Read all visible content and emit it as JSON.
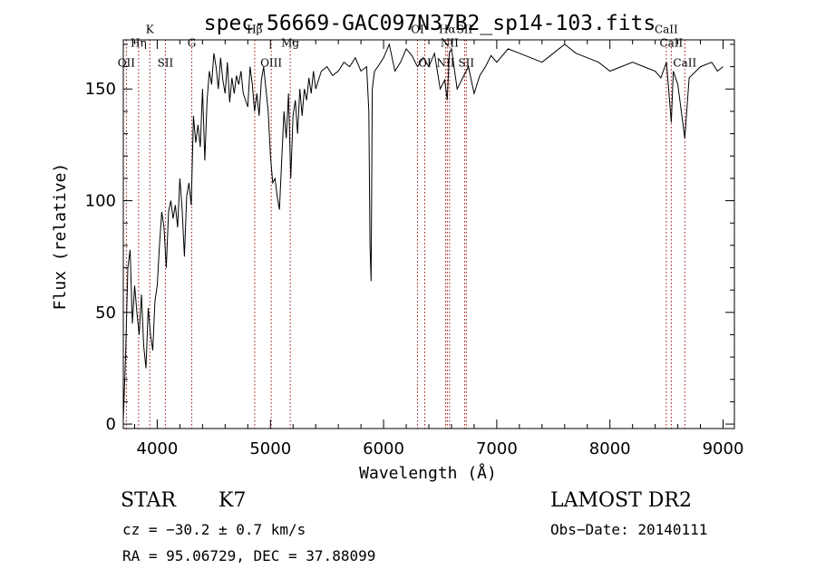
{
  "chart_data": {
    "type": "line",
    "title": "spec-56669-GAC097N37B2_sp14-103.fits",
    "xlabel": "Wavelength (Å)",
    "ylabel": "Flux (relative)",
    "xlim": [
      3700,
      9100
    ],
    "ylim": [
      -2,
      172
    ],
    "x_ticks": [
      4000,
      5000,
      6000,
      7000,
      8000,
      9000
    ],
    "x_tick_labels": [
      "4000",
      "5000",
      "6000",
      "7000",
      "8000",
      "9000"
    ],
    "y_ticks": [
      0,
      50,
      100,
      150
    ],
    "y_tick_labels": [
      "0",
      "50",
      "100",
      "150"
    ],
    "grid": false,
    "line_color": "#000000",
    "marker_color": "#a01010",
    "series": [
      {
        "x": [
          3700,
          3720,
          3740,
          3760,
          3780,
          3800,
          3820,
          3840,
          3860,
          3880,
          3900,
          3920,
          3940,
          3960,
          3980,
          4000,
          4020,
          4040,
          4060,
          4080,
          4100,
          4120,
          4140,
          4160,
          4180,
          4200,
          4220,
          4240,
          4260,
          4280,
          4300,
          4320,
          4340,
          4360,
          4380,
          4400,
          4420,
          4440,
          4460,
          4480,
          4500,
          4520,
          4540,
          4560,
          4580,
          4600,
          4620,
          4640,
          4660,
          4680,
          4700,
          4720,
          4740,
          4760,
          4780,
          4800,
          4820,
          4840,
          4860,
          4880,
          4900,
          4920,
          4940,
          4960,
          4980,
          5000,
          5020,
          5040,
          5060,
          5080,
          5100,
          5120,
          5140,
          5160,
          5180,
          5200,
          5220,
          5240,
          5260,
          5280,
          5300,
          5320,
          5340,
          5360,
          5380,
          5400,
          5450,
          5500,
          5550,
          5600,
          5650,
          5700,
          5750,
          5800,
          5850,
          5870,
          5880,
          5890,
          5900,
          5920,
          5950,
          6000,
          6050,
          6100,
          6150,
          6200,
          6250,
          6300,
          6350,
          6400,
          6450,
          6500,
          6540,
          6563,
          6580,
          6600,
          6650,
          6700,
          6750,
          6800,
          6850,
          6900,
          6950,
          7000,
          7100,
          7200,
          7300,
          7400,
          7500,
          7600,
          7700,
          7800,
          7900,
          8000,
          8100,
          8200,
          8300,
          8400,
          8450,
          8500,
          8542,
          8560,
          8600,
          8662,
          8700,
          8800,
          8900,
          8950,
          9000
        ],
        "y": [
          2,
          30,
          70,
          78,
          45,
          62,
          50,
          40,
          58,
          35,
          25,
          52,
          40,
          33,
          55,
          62,
          80,
          95,
          88,
          70,
          95,
          100,
          92,
          98,
          88,
          110,
          96,
          75,
          102,
          108,
          98,
          138,
          126,
          134,
          124,
          150,
          118,
          145,
          158,
          152,
          166,
          160,
          150,
          164,
          154,
          148,
          162,
          144,
          155,
          148,
          156,
          152,
          158,
          148,
          145,
          142,
          160,
          152,
          140,
          148,
          138,
          154,
          160,
          150,
          140,
          120,
          108,
          110,
          102,
          96,
          118,
          140,
          128,
          148,
          110,
          138,
          145,
          130,
          150,
          138,
          150,
          145,
          155,
          148,
          158,
          150,
          158,
          160,
          156,
          158,
          162,
          160,
          164,
          158,
          160,
          140,
          80,
          64,
          150,
          158,
          160,
          164,
          170,
          158,
          162,
          168,
          165,
          160,
          164,
          160,
          166,
          150,
          154,
          145,
          166,
          168,
          150,
          155,
          160,
          148,
          156,
          160,
          165,
          162,
          168,
          166,
          164,
          162,
          166,
          170,
          166,
          164,
          162,
          158,
          160,
          162,
          160,
          158,
          155,
          162,
          135,
          158,
          152,
          128,
          155,
          160,
          162,
          158,
          160
        ]
      }
    ],
    "line_markers": [
      {
        "x": 3727,
        "label": "OII",
        "label_y": 160
      },
      {
        "x": 3835,
        "label": "Hη",
        "label_y": 169
      },
      {
        "x": 3934,
        "label": "K",
        "label_y": 175
      },
      {
        "x": 4072,
        "label": "SII",
        "label_y": 160
      },
      {
        "x": 4305,
        "label": "G",
        "label_y": 169
      },
      {
        "x": 4861,
        "label": "Hβ",
        "label_y": 175
      },
      {
        "x": 5007,
        "label": "OIII",
        "label_y": 160
      },
      {
        "x": 5175,
        "label": "Mg",
        "label_y": 169
      },
      {
        "x": 6300,
        "label": "OI",
        "label_y": 175
      },
      {
        "x": 6364,
        "label": "OI",
        "label_y": 160
      },
      {
        "x": 6548,
        "label": "NII",
        "label_y": 160
      },
      {
        "x": 6563,
        "label": "Hα",
        "label_y": 175
      },
      {
        "x": 6583,
        "label": "NII",
        "label_y": 169
      },
      {
        "x": 6716,
        "label": "SII",
        "label_y": 175
      },
      {
        "x": 6731,
        "label": "SII",
        "label_y": 160
      },
      {
        "x": 8498,
        "label": "CaII",
        "label_y": 175
      },
      {
        "x": 8542,
        "label": "CaII",
        "label_y": 169
      },
      {
        "x": 8662,
        "label": "CaII",
        "label_y": 160
      }
    ]
  },
  "info": {
    "object_class": "STAR",
    "subclass": "K7",
    "survey": "LAMOST DR2",
    "redshift": "cz = −30.2 ± 0.7 km/s",
    "obs_date": "Obs−Date: 20140111",
    "coords": "RA =  95.06729, DEC =  37.88099"
  }
}
